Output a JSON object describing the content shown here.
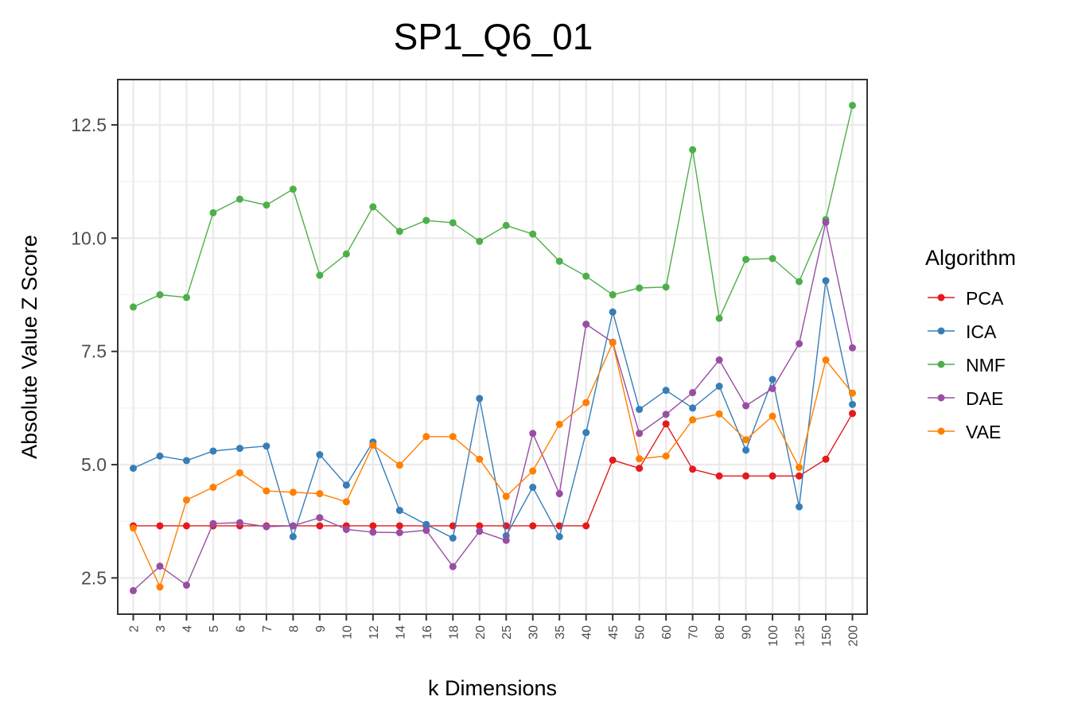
{
  "chart_data": {
    "type": "line",
    "title": "SP1_Q6_01",
    "xlabel": "k Dimensions",
    "ylabel": "Absolute Value Z Score",
    "categories": [
      "2",
      "3",
      "4",
      "5",
      "6",
      "7",
      "8",
      "9",
      "10",
      "12",
      "14",
      "16",
      "18",
      "20",
      "25",
      "30",
      "35",
      "40",
      "45",
      "50",
      "60",
      "70",
      "80",
      "90",
      "100",
      "125",
      "150",
      "200"
    ],
    "y_ticks": [
      2.5,
      5.0,
      7.5,
      10.0,
      12.5
    ],
    "y_tick_labels": [
      "2.5",
      "5.0",
      "7.5",
      "10.0",
      "12.5"
    ],
    "ylim": [
      1.7,
      13.5
    ],
    "grid": true,
    "legend": {
      "title": "Algorithm",
      "position": "right"
    },
    "series": [
      {
        "name": "PCA",
        "color": "#E41A1C",
        "values": [
          3.65,
          3.65,
          3.65,
          3.65,
          3.65,
          3.65,
          3.65,
          3.65,
          3.65,
          3.65,
          3.65,
          3.65,
          3.65,
          3.65,
          3.65,
          3.65,
          3.65,
          3.65,
          5.1,
          4.92,
          5.9,
          4.9,
          4.75,
          4.75,
          4.75,
          4.75,
          5.12,
          6.13
        ]
      },
      {
        "name": "ICA",
        "color": "#377EB8",
        "values": [
          4.92,
          5.19,
          5.09,
          5.3,
          5.36,
          5.41,
          3.41,
          5.22,
          4.55,
          5.5,
          3.99,
          3.68,
          3.38,
          6.46,
          3.43,
          4.5,
          3.41,
          5.71,
          8.37,
          6.22,
          6.64,
          6.25,
          6.73,
          5.32,
          6.88,
          4.07,
          9.06,
          6.33
        ]
      },
      {
        "name": "NMF",
        "color": "#4DAF4A",
        "values": [
          8.48,
          8.75,
          8.69,
          10.56,
          10.86,
          10.73,
          11.08,
          9.18,
          9.65,
          10.69,
          10.15,
          10.39,
          10.34,
          9.93,
          10.28,
          10.09,
          9.49,
          9.16,
          8.75,
          8.9,
          8.92,
          11.95,
          8.23,
          9.53,
          9.55,
          9.04,
          10.41,
          12.93
        ]
      },
      {
        "name": "DAE",
        "color": "#984EA3",
        "values": [
          2.22,
          2.76,
          2.34,
          3.7,
          3.72,
          3.63,
          3.65,
          3.83,
          3.57,
          3.51,
          3.5,
          3.55,
          2.75,
          3.53,
          3.33,
          5.69,
          4.36,
          8.1,
          7.7,
          5.69,
          6.11,
          6.59,
          7.31,
          6.3,
          6.68,
          7.67,
          10.35,
          7.58
        ]
      },
      {
        "name": "VAE",
        "color": "#FF7F00",
        "values": [
          3.6,
          2.3,
          4.22,
          4.5,
          4.82,
          4.42,
          4.39,
          4.36,
          4.18,
          5.43,
          4.99,
          5.62,
          5.62,
          5.12,
          4.3,
          4.86,
          5.89,
          6.37,
          7.69,
          5.13,
          5.19,
          5.99,
          6.12,
          5.55,
          6.07,
          4.94,
          7.31,
          6.58
        ]
      }
    ]
  }
}
